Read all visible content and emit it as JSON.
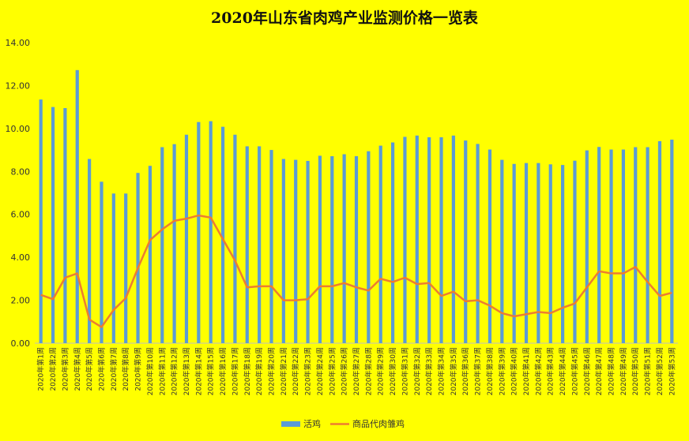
{
  "chart_data": {
    "type": "bar",
    "title": "2020年山东省肉鸡产业监测价格一览表",
    "xlabel": "",
    "ylabel": "",
    "ylim": [
      0,
      14
    ],
    "yticks": [
      "0.00",
      "2.00",
      "4.00",
      "6.00",
      "8.00",
      "10.00",
      "12.00",
      "14.00"
    ],
    "grid": false,
    "legend_position": "bottom",
    "categories": [
      "2020年第1周",
      "2020年第2周",
      "2020年第3周",
      "2020年第4周",
      "2020年第5周",
      "2020年第6周",
      "2020年第7周",
      "2020年第8周",
      "2020年第9周",
      "2020年第10周",
      "2020年第11周",
      "2020年第12周",
      "2020年第13周",
      "2020年第14周",
      "2020年第15周",
      "2020年第16周",
      "2020年第17周",
      "2020年第18周",
      "2020年第19周",
      "2020年第20周",
      "2020年第21周",
      "2020年第22周",
      "2020年第23周",
      "2020年第24周",
      "2020年第25周",
      "2020年第26周",
      "2020年第27周",
      "2020年第28周",
      "2020年第29周",
      "2020年第30周",
      "2020年第31周",
      "2020年第32周",
      "2020年第33周",
      "2020年第34周",
      "2020年第35周",
      "2020年第36周",
      "2020年第37周",
      "2020年第38周",
      "2020年第39周",
      "2020年第40周",
      "2020年第41周",
      "2020年第42周",
      "2020年第43周",
      "2020年第44周",
      "2020年第45周",
      "2020年第46周",
      "2020年第47周",
      "2020年第48周",
      "2020年第49周",
      "2020年第50周",
      "2020年第51周",
      "2020年第52周",
      "2020年第53周"
    ],
    "series": [
      {
        "name": "活鸡",
        "type": "bar",
        "color": "#5b9bd5",
        "values": [
          11.35,
          11.0,
          10.95,
          12.72,
          8.58,
          7.52,
          6.97,
          6.97,
          7.93,
          8.26,
          9.13,
          9.27,
          9.71,
          10.3,
          10.34,
          10.08,
          9.71,
          9.17,
          9.17,
          9.0,
          8.58,
          8.54,
          8.49,
          8.73,
          8.71,
          8.8,
          8.71,
          8.94,
          9.2,
          9.35,
          9.61,
          9.67,
          9.59,
          9.59,
          9.67,
          9.44,
          9.28,
          9.02,
          8.54,
          8.35,
          8.39,
          8.39,
          8.33,
          8.3,
          8.5,
          8.98,
          9.14,
          9.02,
          9.02,
          9.13,
          9.13,
          9.41,
          9.48
        ]
      },
      {
        "name": "商品代肉雏鸡",
        "type": "line",
        "color": "#ed7d31",
        "values": [
          2.25,
          2.05,
          3.05,
          3.25,
          1.1,
          0.75,
          1.55,
          2.1,
          3.5,
          4.8,
          5.3,
          5.7,
          5.8,
          5.95,
          5.85,
          4.85,
          3.85,
          2.6,
          2.65,
          2.65,
          2.0,
          2.0,
          2.05,
          2.65,
          2.65,
          2.8,
          2.6,
          2.45,
          3.0,
          2.85,
          3.05,
          2.75,
          2.8,
          2.2,
          2.4,
          1.95,
          2.0,
          1.75,
          1.4,
          1.25,
          1.35,
          1.45,
          1.4,
          1.65,
          1.85,
          2.6,
          3.35,
          3.25,
          3.25,
          3.55,
          2.85,
          2.2,
          2.35
        ]
      }
    ]
  }
}
